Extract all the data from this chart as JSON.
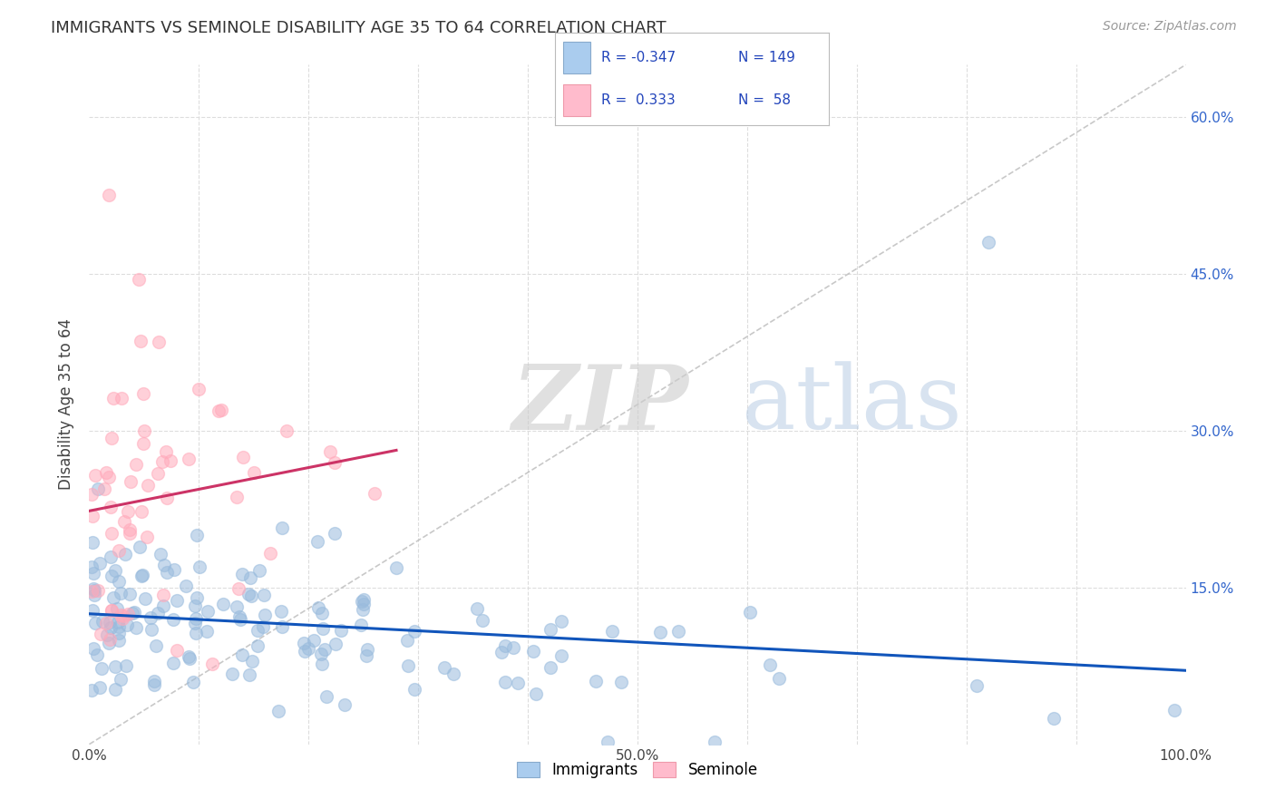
{
  "title": "IMMIGRANTS VS SEMINOLE DISABILITY AGE 35 TO 64 CORRELATION CHART",
  "source": "Source: ZipAtlas.com",
  "ylabel": "Disability Age 35 to 64",
  "xlim": [
    0,
    1.0
  ],
  "ylim": [
    0,
    0.65
  ],
  "ytick_positions": [
    0.0,
    0.15,
    0.3,
    0.45,
    0.6
  ],
  "xtick_positions": [
    0.0,
    0.1,
    0.2,
    0.3,
    0.4,
    0.5,
    0.6,
    0.7,
    0.8,
    0.9,
    1.0
  ],
  "xtick_labels": [
    "0.0%",
    "",
    "",
    "",
    "",
    "50.0%",
    "",
    "",
    "",
    "",
    "100.0%"
  ],
  "blue_scatter_color": "#99bbdd",
  "pink_scatter_color": "#ffaabb",
  "blue_line_color": "#1155bb",
  "pink_line_color": "#cc3366",
  "diag_color": "#bbbbbb",
  "grid_color": "#dddddd",
  "R_blue": -0.347,
  "N_blue": 149,
  "R_pink": 0.333,
  "N_pink": 58,
  "watermark_zip": "ZIP",
  "watermark_atlas": "atlas",
  "background_color": "#ffffff"
}
